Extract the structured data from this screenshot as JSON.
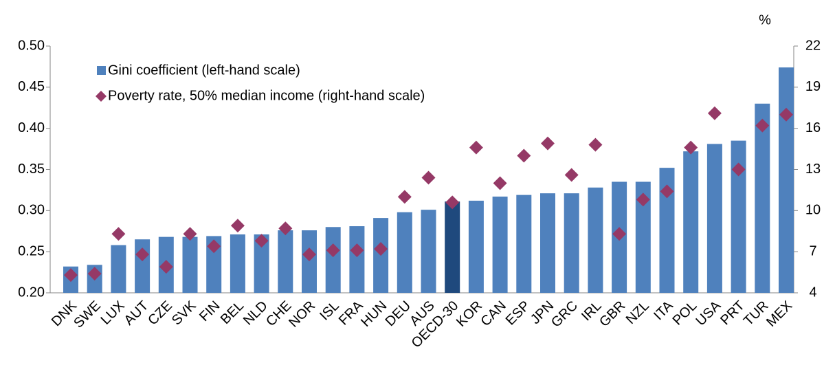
{
  "chart_data": {
    "type": "bar",
    "categories": [
      "DNK",
      "SWE",
      "LUX",
      "AUT",
      "CZE",
      "SVK",
      "FIN",
      "BEL",
      "NLD",
      "CHE",
      "NOR",
      "ISL",
      "FRA",
      "HUN",
      "DEU",
      "AUS",
      "OECD-30",
      "KOR",
      "CAN",
      "ESP",
      "JPN",
      "GRC",
      "IRL",
      "GBR",
      "NZL",
      "ITA",
      "POL",
      "USA",
      "PRT",
      "TUR",
      "MEX"
    ],
    "series": [
      {
        "name": "Gini coefficient (left-hand scale)",
        "type": "bar",
        "color": "#4f81bd",
        "colors": [
          "#4f81bd",
          "#4f81bd",
          "#4f81bd",
          "#4f81bd",
          "#4f81bd",
          "#4f81bd",
          "#4f81bd",
          "#4f81bd",
          "#4f81bd",
          "#4f81bd",
          "#4f81bd",
          "#4f81bd",
          "#4f81bd",
          "#4f81bd",
          "#4f81bd",
          "#4f81bd",
          "#1f497d",
          "#4f81bd",
          "#4f81bd",
          "#4f81bd",
          "#4f81bd",
          "#4f81bd",
          "#4f81bd",
          "#4f81bd",
          "#4f81bd",
          "#4f81bd",
          "#4f81bd",
          "#4f81bd",
          "#4f81bd",
          "#4f81bd",
          "#4f81bd"
        ],
        "values": [
          0.232,
          0.234,
          0.258,
          0.265,
          0.268,
          0.268,
          0.269,
          0.271,
          0.271,
          0.276,
          0.276,
          0.28,
          0.281,
          0.291,
          0.298,
          0.301,
          0.311,
          0.312,
          0.317,
          0.319,
          0.321,
          0.321,
          0.328,
          0.335,
          0.335,
          0.352,
          0.372,
          0.381,
          0.385,
          0.43,
          0.474
        ]
      },
      {
        "name": "Poverty rate, 50% median income (right-hand scale)",
        "type": "scatter",
        "axis": "y2",
        "color": "#953966",
        "values": [
          5.3,
          5.4,
          8.3,
          6.8,
          5.9,
          8.3,
          7.4,
          8.9,
          7.8,
          8.7,
          6.8,
          7.1,
          7.1,
          7.2,
          11.0,
          12.4,
          10.6,
          14.6,
          12.0,
          14.0,
          14.9,
          12.6,
          14.8,
          8.3,
          10.8,
          11.4,
          14.6,
          17.1,
          13.0,
          16.2,
          17.0
        ]
      }
    ],
    "ylim": [
      0.2,
      0.5
    ],
    "yticks": [
      {
        "value": 0.2,
        "label": "0.20"
      },
      {
        "value": 0.25,
        "label": "0.25"
      },
      {
        "value": 0.3,
        "label": "0.30"
      },
      {
        "value": 0.35,
        "label": "0.35"
      },
      {
        "value": 0.4,
        "label": "0.40"
      },
      {
        "value": 0.45,
        "label": "0.45"
      },
      {
        "value": 0.5,
        "label": "0.50"
      }
    ],
    "y2lim": [
      4,
      22
    ],
    "y2ticks": [
      4,
      7,
      10,
      13,
      16,
      19,
      22
    ],
    "y2_unit_label": "%",
    "grid": false,
    "legend": "top-left"
  }
}
